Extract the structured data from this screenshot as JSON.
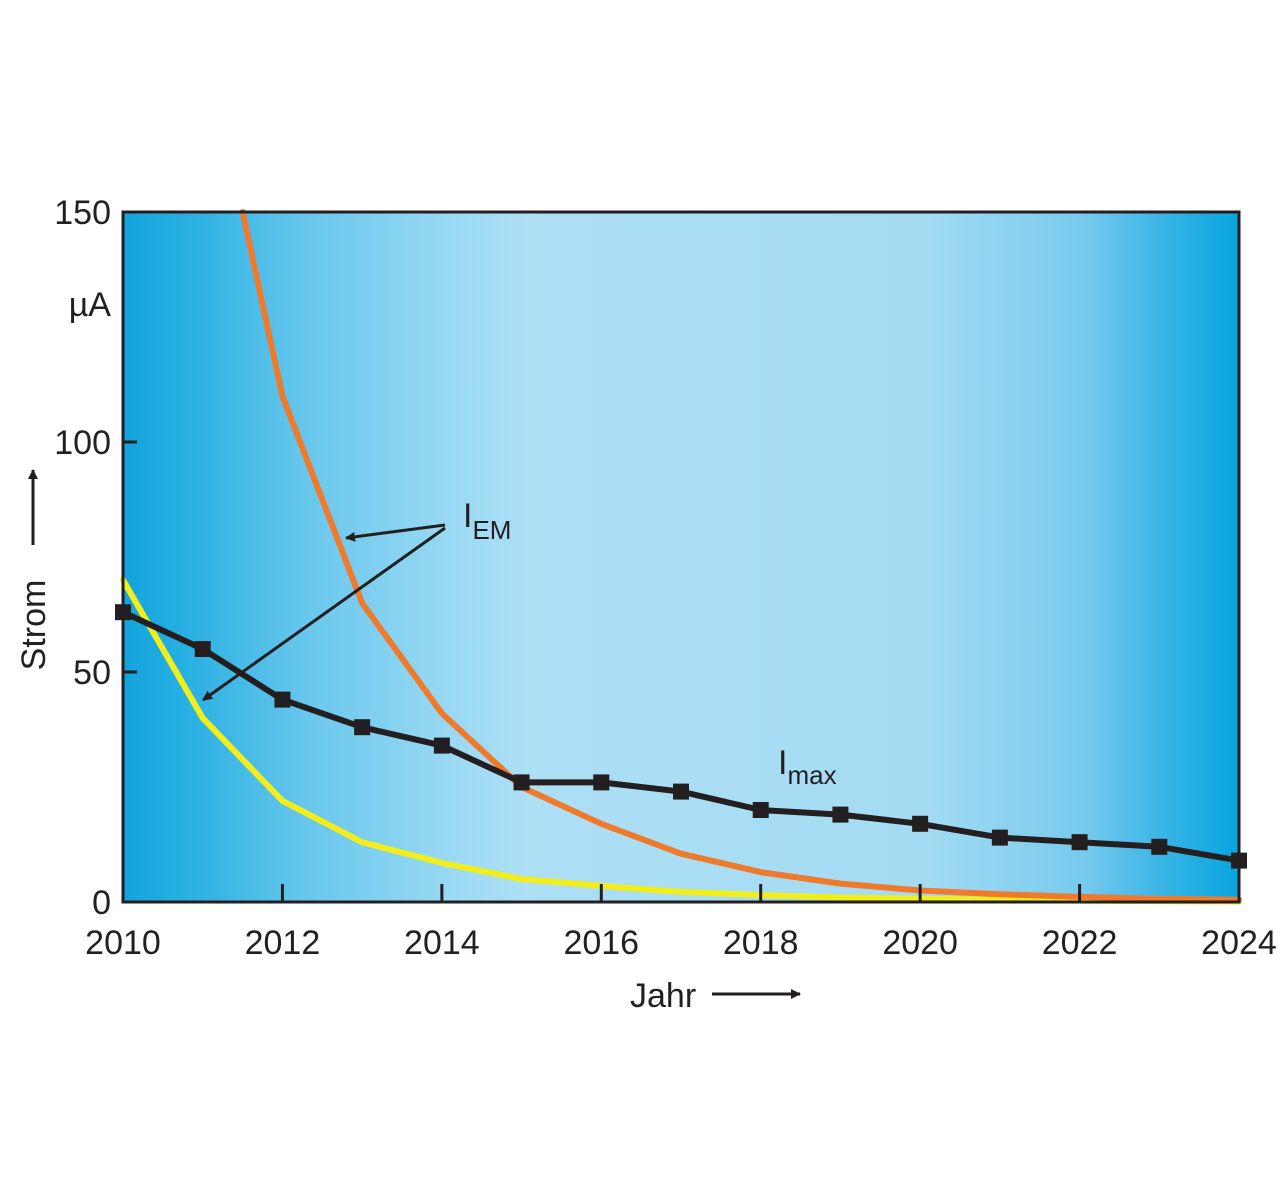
{
  "chart_data": {
    "type": "line",
    "xlabel": "Jahr",
    "ylabel": "Strom",
    "y_unit": "µA",
    "xlim": [
      2010,
      2024
    ],
    "ylim": [
      0,
      150
    ],
    "x_ticks": [
      2010,
      2012,
      2014,
      2016,
      2018,
      2020,
      2022,
      2024
    ],
    "y_ticks": [
      0,
      50,
      100,
      150
    ],
    "grid": false,
    "background": "blue-gradient",
    "series": [
      {
        "name": "I_max",
        "label_main": "I",
        "label_sub": "max",
        "color": "#231f20",
        "marker": "square",
        "x": [
          2010,
          2011,
          2012,
          2013,
          2014,
          2015,
          2016,
          2017,
          2018,
          2019,
          2020,
          2021,
          2022,
          2023,
          2024
        ],
        "y": [
          63,
          55,
          44,
          38,
          34,
          26,
          26,
          24,
          20,
          19,
          17,
          14,
          13,
          12,
          9
        ]
      },
      {
        "name": "I_EM (orange)",
        "label_main": "I",
        "label_sub": "EM",
        "color": "#f07a2b",
        "marker": "none",
        "x": [
          2011.5,
          2012,
          2013,
          2014,
          2015,
          2016,
          2017,
          2018,
          2019,
          2020,
          2021,
          2022,
          2023,
          2024
        ],
        "y": [
          150,
          110,
          65,
          41,
          25,
          17,
          10.5,
          6.5,
          4,
          2.5,
          1.7,
          1.1,
          0.7,
          0.5
        ]
      },
      {
        "name": "I_EM (yellow)",
        "label_main": "I",
        "label_sub": "EM",
        "color": "#f2ee1c",
        "marker": "none",
        "x": [
          2010,
          2011,
          2012,
          2013,
          2014,
          2015,
          2016,
          2017,
          2018,
          2019,
          2020,
          2021,
          2022,
          2023,
          2024
        ],
        "y": [
          70,
          40,
          22,
          13,
          8.5,
          5,
          3.5,
          2.2,
          1.5,
          1,
          0.7,
          0.5,
          0.3,
          0.2,
          0.1
        ]
      }
    ]
  }
}
